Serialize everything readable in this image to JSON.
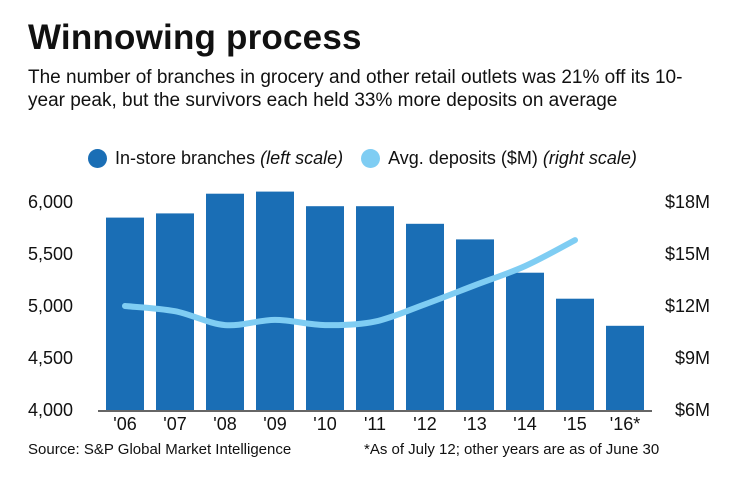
{
  "header": {
    "title": "Winnowing process",
    "subtitle": "The number of branches in grocery and other retail outlets was 21% off its 10-year peak, but the survivors each held 33% more deposits on average"
  },
  "legend": {
    "branches_label": "In-store branches",
    "branches_scale": "(left scale)",
    "deposits_label": "Avg. deposits ($M)",
    "deposits_scale": "(right scale)"
  },
  "colors": {
    "bar": "#1a6eb5",
    "line": "#7fcdf3",
    "axis": "#333333"
  },
  "footer": {
    "source": "Source: S&P Global Market Intelligence",
    "note": "*As of July 12; other years are as of June 30"
  },
  "chart_data": {
    "type": "bar",
    "categories": [
      "'06",
      "'07",
      "'08",
      "'09",
      "'10",
      "'11",
      "'12",
      "'13",
      "'14",
      "'15",
      "'16*"
    ],
    "series": [
      {
        "name": "In-store branches",
        "axis": "left",
        "type": "bar",
        "values": [
          5850,
          5890,
          6080,
          6100,
          5960,
          5960,
          5790,
          5640,
          5320,
          5070,
          4810
        ]
      },
      {
        "name": "Avg. deposits ($M)",
        "axis": "right",
        "type": "line",
        "values": [
          12.0,
          11.7,
          10.9,
          11.2,
          10.9,
          11.1,
          12.1,
          13.2,
          14.3,
          15.8,
          null
        ]
      }
    ],
    "left_axis": {
      "ylim": [
        4000,
        6000
      ],
      "ticks": [
        4000,
        4500,
        5000,
        5500,
        6000
      ],
      "tick_labels": [
        "4,000",
        "4,500",
        "5,000",
        "5,500",
        "6,000"
      ]
    },
    "right_axis": {
      "ylim": [
        6,
        18
      ],
      "ticks": [
        6,
        9,
        12,
        15,
        18
      ],
      "tick_labels": [
        "$6M",
        "$9M",
        "$12M",
        "$15M",
        "$18M"
      ]
    },
    "grid": false,
    "legend_position": "top"
  }
}
